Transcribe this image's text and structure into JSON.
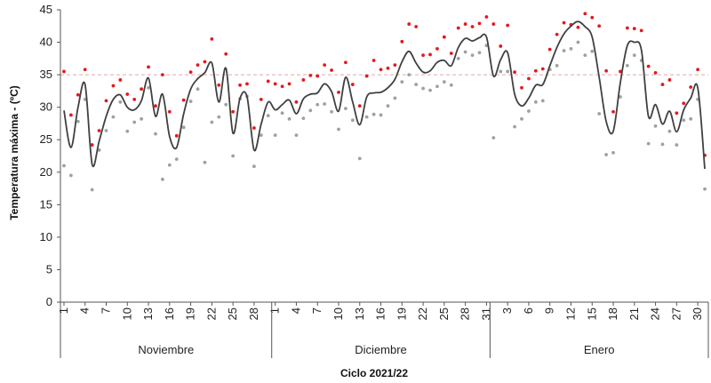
{
  "chart_data": {
    "type": "line",
    "ylabel": "Temperatura máxima - (ºC)",
    "xlabel": "Ciclo 2021/22",
    "ylim": [
      0,
      45
    ],
    "yticks": [
      0,
      5,
      10,
      15,
      20,
      25,
      30,
      35,
      40,
      45
    ],
    "reference_line": {
      "y": 35,
      "style": "dashed",
      "color": "#e3a8a8"
    },
    "months": [
      {
        "name": "Noviembre",
        "days": 30,
        "labeled_days": [
          "1",
          "4",
          "7",
          "10",
          "13",
          "16",
          "19",
          "22",
          "25",
          "28"
        ]
      },
      {
        "name": "Diciembre",
        "days": 31,
        "labeled_days": [
          "1",
          "4",
          "7",
          "10",
          "13",
          "16",
          "19",
          "22",
          "25",
          "28",
          "31"
        ]
      },
      {
        "name": "Enero",
        "days": 31,
        "labeled_days": [
          "3",
          "6",
          "9",
          "12",
          "15",
          "18",
          "21",
          "24",
          "27",
          "30"
        ]
      }
    ],
    "colors": {
      "series_1": "#e31a1c",
      "series_2": "#9aa3a3",
      "series_3": "#404040"
    },
    "series": [
      {
        "style": "points",
        "values": [
          35.5,
          28.8,
          31.9,
          35.8,
          24.2,
          26.4,
          31.0,
          33.3,
          34.2,
          32.0,
          31.2,
          32.8,
          36.2,
          30.2,
          35.0,
          29.3,
          25.6,
          31.1,
          35.4,
          36.5,
          37.0,
          40.5,
          33.4,
          38.2,
          29.3,
          33.4,
          33.6,
          26.8,
          31.2,
          34.0,
          33.6,
          33.2,
          33.6,
          30.8,
          34.2,
          34.9,
          34.8,
          36.5,
          35.7,
          32.3,
          36.9,
          33.5,
          30.2,
          34.8,
          37.2,
          35.8,
          36.0,
          36.5,
          40.1,
          42.8,
          42.4,
          38.0,
          38.1,
          39.0,
          40.8,
          38.3,
          42.2,
          42.8,
          42.4,
          42.9,
          43.9,
          42.8,
          39.4,
          42.6,
          35.4,
          33.0,
          34.4,
          35.6,
          35.9,
          38.9,
          41.2,
          43.0,
          42.7,
          42.3,
          44.4,
          43.8,
          42.5,
          35.6,
          29.3,
          35.5,
          42.2,
          42.1,
          41.8,
          36.3,
          35.3,
          33.5,
          34.2,
          29.1,
          30.6,
          33.1,
          35.8,
          22.6
        ]
      },
      {
        "style": "points",
        "values": [
          21.0,
          19.5,
          27.8,
          31.2,
          17.3,
          23.4,
          26.4,
          28.5,
          30.8,
          26.3,
          27.7,
          28.2,
          33.0,
          25.9,
          18.9,
          21.1,
          22.0,
          26.9,
          30.9,
          32.8,
          21.5,
          27.7,
          28.5,
          30.4,
          22.5,
          31.3,
          31.7,
          20.9,
          25.7,
          28.7,
          25.7,
          29.1,
          28.2,
          25.7,
          28.3,
          29.5,
          30.4,
          30.5,
          29.3,
          26.6,
          29.8,
          28.0,
          22.1,
          28.5,
          28.9,
          28.8,
          30.2,
          31.4,
          33.9,
          35.0,
          33.5,
          32.9,
          32.6,
          33.2,
          33.9,
          33.4,
          37.5,
          38.5,
          38.0,
          38.4,
          39.5,
          25.3,
          35.5,
          35.5,
          27.0,
          28.2,
          29.4,
          30.8,
          31.0,
          35.8,
          36.4,
          38.7,
          39.0,
          40.0,
          38.0,
          38.6,
          29.0,
          22.7,
          23.0,
          31.6,
          36.4,
          38.0,
          37.2,
          24.4,
          27.1,
          24.3,
          26.3,
          24.2,
          28.0,
          28.2,
          31.2,
          17.4
        ]
      },
      {
        "style": "smooth-line",
        "values": [
          29.5,
          23.8,
          30.0,
          33.5,
          21.2,
          24.8,
          28.6,
          31.2,
          31.9,
          30.0,
          29.6,
          31.0,
          34.5,
          28.6,
          32.0,
          25.5,
          23.8,
          29.0,
          32.8,
          34.4,
          35.3,
          36.8,
          30.8,
          36.0,
          26.0,
          31.4,
          31.6,
          23.4,
          27.4,
          30.8,
          29.6,
          30.4,
          31.1,
          29.0,
          31.3,
          32.0,
          32.2,
          33.6,
          32.4,
          29.4,
          34.6,
          30.8,
          27.3,
          31.6,
          32.2,
          32.3,
          33.0,
          34.3,
          37.0,
          38.6,
          36.8,
          35.4,
          35.6,
          36.9,
          37.2,
          36.4,
          39.2,
          40.6,
          40.2,
          40.7,
          40.8,
          34.8,
          37.3,
          38.4,
          32.0,
          30.2,
          31.4,
          33.4,
          33.5,
          36.4,
          39.2,
          41.3,
          42.5,
          43.2,
          42.4,
          40.8,
          34.6,
          27.8,
          26.3,
          33.8,
          39.5,
          40.0,
          38.8,
          28.6,
          30.4,
          27.4,
          29.4,
          26.2,
          29.6,
          31.4,
          33.0,
          20.5
        ]
      }
    ]
  }
}
